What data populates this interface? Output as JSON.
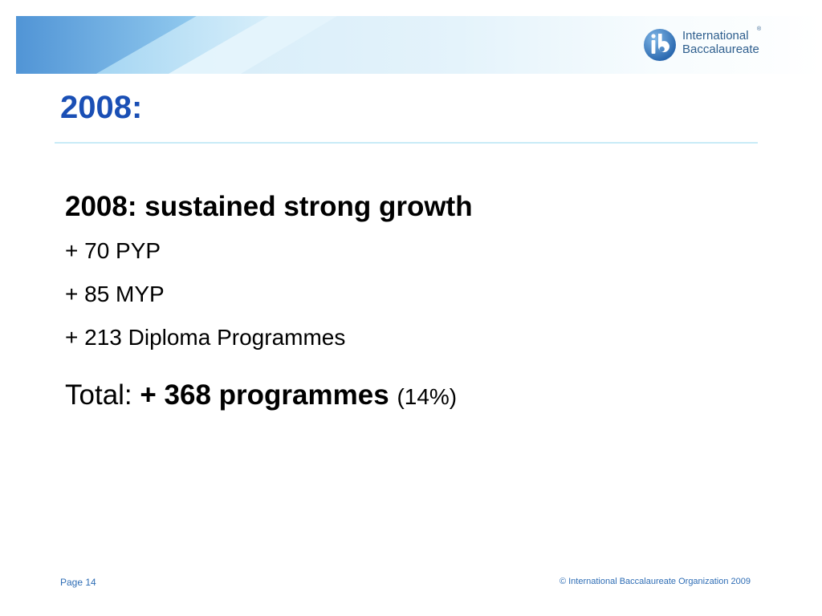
{
  "header": {
    "logo": {
      "icon": "ib-logo-icon",
      "line1": "International",
      "line2": "Baccalaureate",
      "registered": "®"
    }
  },
  "slide": {
    "title": "2008:",
    "heading": "2008: sustained strong growth",
    "lines": [
      "+ 70 PYP",
      "+ 85 MYP",
      "+ 213 Diploma Programmes"
    ],
    "total": {
      "label": "Total: ",
      "amount": "+ 368 programmes",
      "percent": "(14%)"
    }
  },
  "footer": {
    "page": "Page 14",
    "copyright": "© International Baccalaureate Organization 2009"
  },
  "colors": {
    "title": "#1a4fb5",
    "footer": "#2e6db5",
    "banner_light": "#d3ecf8",
    "banner_dark": "#5aa7de"
  }
}
